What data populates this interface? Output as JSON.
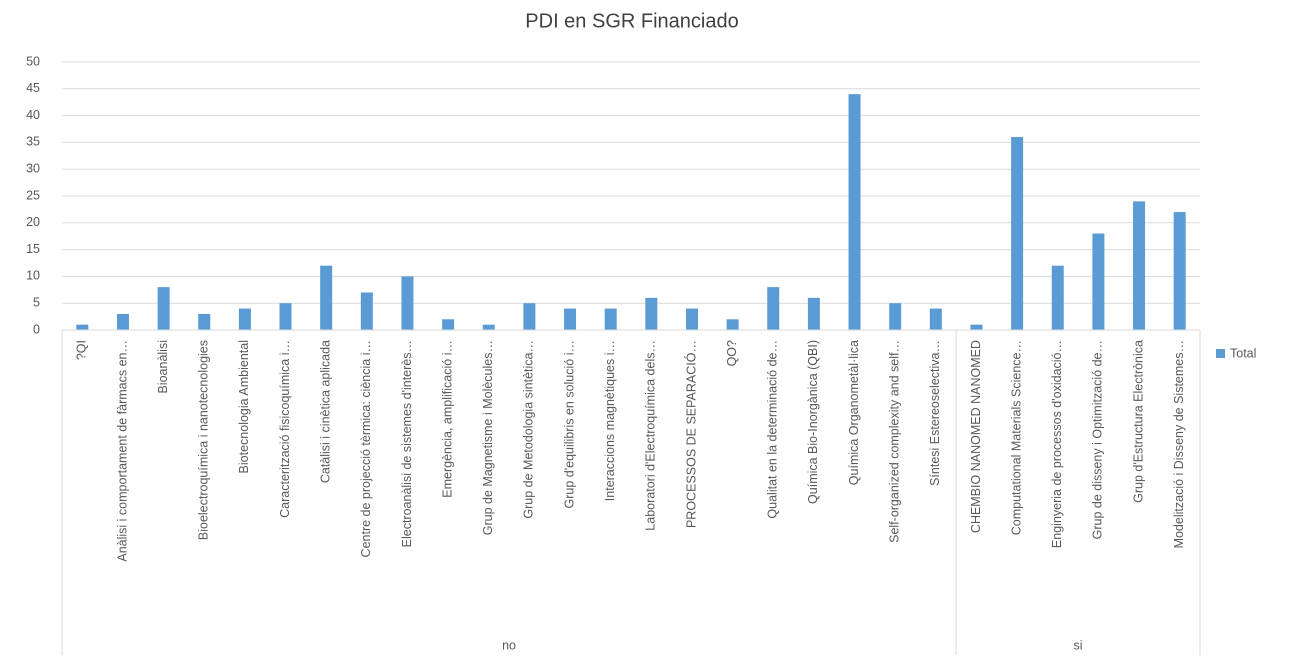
{
  "chart_data": {
    "type": "bar",
    "title": "PDI en SGR Financiado",
    "groups": [
      {
        "name": "no",
        "categories": [
          "?QI",
          "Anàlisi i comportament de fàrmacs en…",
          "Bioanàlisi",
          "Bioelectroquímica i nanotecnologies",
          "Biotecnologia Ambiental",
          "Caracterització fisicoquímica i…",
          "Catàlisi i cinètica aplicada",
          "Centre de projecció tèrmica: ciència i…",
          "Electroanàlisi de sistemes d'interès…",
          "Emergència, amplificació i…",
          "Grup de Magnetisme i Molècules…",
          "Grup de Metodologia sintètica…",
          "Grup d'equilibris en solució i…",
          "Interaccions magnètiques i…",
          "Laboratori d'Electroquímica dels…",
          "PROCESSOS DE SEPARACIÓ…",
          "QO?",
          "Qualitat en la determinació de…",
          "Química Bio-Inorgànica (QBI)",
          "Química Organometàl·lica",
          "Self-organized complexity and self…",
          "Síntesi Estereoselectiva…"
        ]
      },
      {
        "name": "si",
        "categories": [
          "CHEMBIO NANOMED NANOMED",
          "Computational Materials Science…",
          "Enginyeria de processos d'oxidació…",
          "Grup de disseny i Optimització de…",
          "Grup d'Estructura Electrònica",
          "Modelització i Disseny de Sistemes…"
        ]
      }
    ],
    "series": [
      {
        "name": "Total",
        "color": "#5b9bd5",
        "values": [
          1,
          3,
          8,
          3,
          4,
          5,
          12,
          7,
          10,
          2,
          1,
          5,
          4,
          4,
          6,
          4,
          2,
          8,
          6,
          44,
          5,
          4,
          1,
          36,
          12,
          18,
          24,
          22
        ]
      }
    ],
    "ylim": [
      0,
      50
    ],
    "yticks": [
      0,
      5,
      10,
      15,
      20,
      25,
      30,
      35,
      40,
      45,
      50
    ],
    "grid": true,
    "legend": "right"
  }
}
